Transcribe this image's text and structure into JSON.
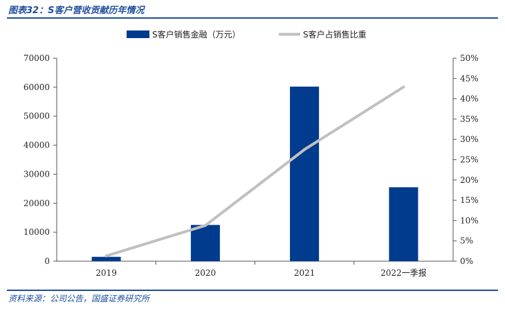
{
  "caption": "图表32：S客户营收贡献历年情况",
  "source": "资料来源：公司公告，国盛证券研究所",
  "colors": {
    "bar": "#003b8e",
    "line": "#c0c0c0",
    "accent": "#1f4e9c"
  },
  "chart_data": {
    "type": "bar",
    "categories": [
      "2019",
      "2020",
      "2021",
      "2022一季报"
    ],
    "series": [
      {
        "name": "S客户销售金融（万元）",
        "type": "bar",
        "axis": "left",
        "values": [
          1500,
          12500,
          60200,
          25500
        ]
      },
      {
        "name": "S客户占销售比重",
        "type": "line",
        "axis": "right",
        "values": [
          1.3,
          8.8,
          27.5,
          42.9
        ]
      }
    ],
    "left_axis": {
      "min": 0,
      "max": 70000,
      "ticks": [
        "0",
        "10000",
        "20000",
        "30000",
        "40000",
        "50000",
        "60000",
        "70000"
      ]
    },
    "right_axis": {
      "min": 0,
      "max": 50,
      "ticks": [
        "0%",
        "5%",
        "10%",
        "15%",
        "20%",
        "25%",
        "30%",
        "35%",
        "40%",
        "45%",
        "50%"
      ]
    },
    "legend_position": "top",
    "grid": false
  }
}
